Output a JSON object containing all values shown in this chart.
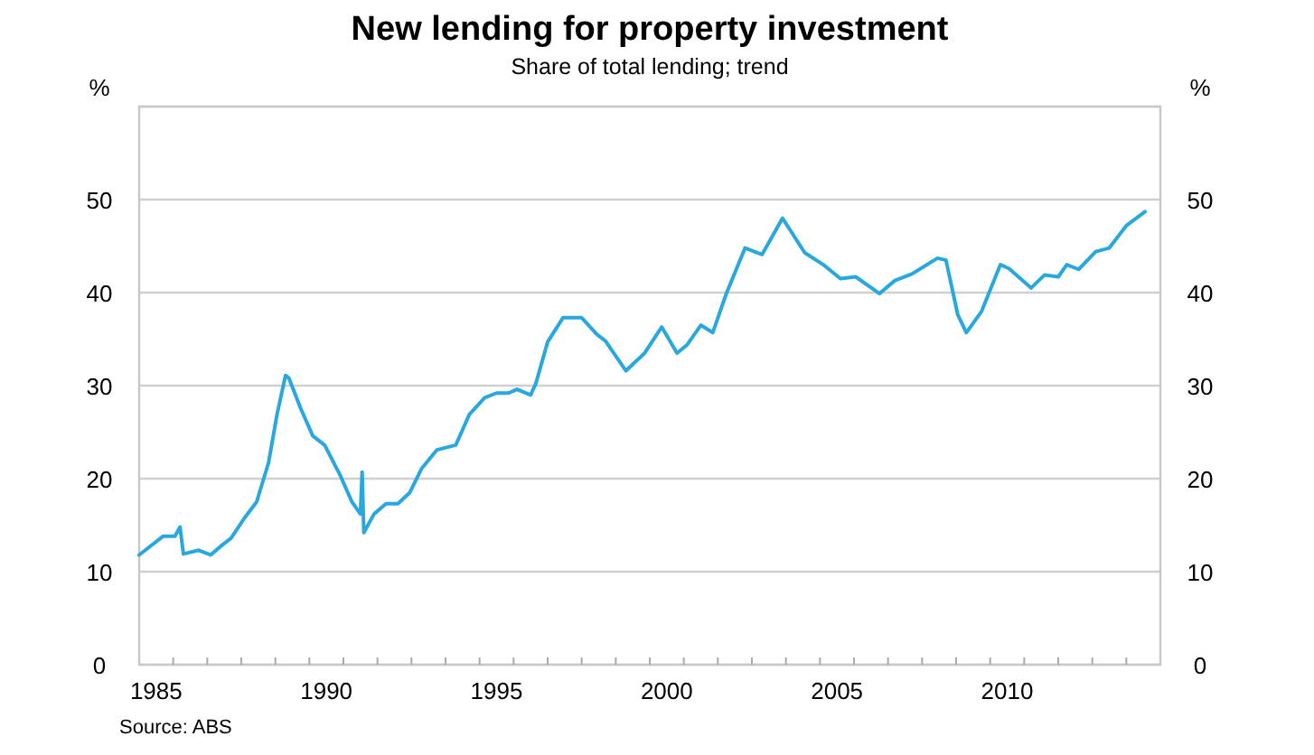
{
  "chart_data": {
    "type": "line",
    "title": "New lending for property investment",
    "subtitle": "Share of total lending; trend",
    "ylabel": "%",
    "y2label": "%",
    "x": [
      1985.0,
      1985.7,
      1986.05,
      1986.2,
      1986.3,
      1986.75,
      1987.1,
      1987.45,
      1987.7,
      1988.1,
      1988.45,
      1988.8,
      1989.05,
      1989.3,
      1989.4,
      1989.75,
      1990.1,
      1990.45,
      1990.9,
      1991.25,
      1991.5,
      1991.55,
      1991.6,
      1991.9,
      1992.25,
      1992.6,
      1992.95,
      1993.3,
      1993.75,
      1994.3,
      1994.7,
      1995.15,
      1995.5,
      1995.85,
      1996.1,
      1996.5,
      1996.65,
      1997.0,
      1997.45,
      1998.0,
      1998.45,
      1998.7,
      1999.3,
      1999.85,
      2000.35,
      2000.8,
      2001.1,
      2001.5,
      2001.85,
      2002.25,
      2002.8,
      2003.3,
      2003.9,
      2004.55,
      2005.1,
      2005.6,
      2006.05,
      2006.75,
      2007.2,
      2007.7,
      2008.45,
      2008.7,
      2009.05,
      2009.3,
      2009.75,
      2010.3,
      2010.55,
      2011.2,
      2011.6,
      2012.0,
      2012.25,
      2012.6,
      2013.1,
      2013.5,
      2014.0,
      2014.55
    ],
    "series": [
      {
        "color": "#29a8e0",
        "values": [
          11.8,
          13.8,
          13.8,
          14.8,
          11.9,
          12.3,
          11.8,
          12.9,
          13.6,
          15.8,
          17.5,
          21.7,
          26.9,
          31.1,
          30.8,
          27.5,
          24.6,
          23.6,
          20.4,
          17.5,
          16.2,
          20.7,
          14.2,
          16.2,
          17.3,
          17.3,
          18.5,
          21.1,
          23.1,
          23.6,
          26.9,
          28.7,
          29.2,
          29.2,
          29.6,
          29.0,
          30.2,
          34.7,
          37.3,
          37.3,
          35.5,
          34.8,
          31.6,
          33.5,
          36.3,
          33.5,
          34.4,
          36.5,
          35.7,
          39.9,
          44.8,
          44.1,
          48.0,
          44.3,
          43.0,
          41.5,
          41.7,
          39.9,
          41.3,
          42.0,
          43.7,
          43.5,
          37.6,
          35.7,
          38.0,
          43.0,
          42.6,
          40.5,
          41.9,
          41.7,
          43.0,
          42.5,
          44.4,
          44.8,
          47.2,
          48.7
        ]
      }
    ],
    "xlim": [
      1985,
      2015
    ],
    "xticks": [
      {
        "value": 1985.5,
        "label": "1985"
      },
      {
        "value": 1990.5,
        "label": "1990"
      },
      {
        "value": 1995.5,
        "label": "1995"
      },
      {
        "value": 2000.5,
        "label": "2000"
      },
      {
        "value": 2005.5,
        "label": "2005"
      },
      {
        "value": 2010.5,
        "label": "2010"
      },
      {
        "value": 1986,
        "label": null
      },
      {
        "value": 1987,
        "label": null
      },
      {
        "value": 1988,
        "label": null
      },
      {
        "value": 1989,
        "label": null
      },
      {
        "value": 1990,
        "label": null
      },
      {
        "value": 1991,
        "label": null
      },
      {
        "value": 1992,
        "label": null
      },
      {
        "value": 1993,
        "label": null
      },
      {
        "value": 1994,
        "label": null
      },
      {
        "value": 1995,
        "label": null
      },
      {
        "value": 1996,
        "label": null
      },
      {
        "value": 1997,
        "label": null
      },
      {
        "value": 1998,
        "label": null
      },
      {
        "value": 1999,
        "label": null
      },
      {
        "value": 2000,
        "label": null
      },
      {
        "value": 2001,
        "label": null
      },
      {
        "value": 2002,
        "label": null
      },
      {
        "value": 2003,
        "label": null
      },
      {
        "value": 2004,
        "label": null
      },
      {
        "value": 2005,
        "label": null
      },
      {
        "value": 2006,
        "label": null
      },
      {
        "value": 2007,
        "label": null
      },
      {
        "value": 2008,
        "label": null
      },
      {
        "value": 2009,
        "label": null
      },
      {
        "value": 2010,
        "label": null
      },
      {
        "value": 2011,
        "label": null
      },
      {
        "value": 2012,
        "label": null
      },
      {
        "value": 2013,
        "label": null
      },
      {
        "value": 2014,
        "label": null
      }
    ],
    "ylim": [
      0,
      60
    ],
    "yticks": [
      0,
      10,
      20,
      30,
      40,
      50,
      {
        "value": 60,
        "label": null
      }
    ],
    "y2lim": [
      0,
      60
    ],
    "y2ticks": [
      0,
      10,
      20,
      30,
      40,
      50
    ],
    "grid": "y",
    "line_style": "solid",
    "marker": "none",
    "annotations": [
      "Source: ABS"
    ]
  }
}
